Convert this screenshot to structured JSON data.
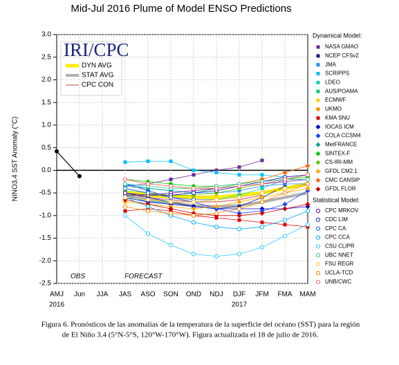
{
  "chart_data": {
    "type": "line",
    "title": "Mid-Jul 2016 Plume of Model ENSO Predictions",
    "y_label": "NINO3.4 SST Anomaly (°C)",
    "logo": "IRI/CPC",
    "annotations": [
      "OBS",
      "FORECAST"
    ],
    "caption": [
      "Figura 6. Pronósticos de las anomalías de la temperatura de la superficie del océano (SST) para la región",
      "de El Niño 3.4 (5°N-5°S, 120°W-170°W). Figura actualizada el 18 de julio de 2016."
    ],
    "categories": [
      "AMJ",
      "Jun",
      "JJA",
      "JAS",
      "ASO",
      "SON",
      "OND",
      "NDJ",
      "DJF",
      "JFM",
      "FMA",
      "MAM"
    ],
    "year_labels": [
      "2016",
      null,
      null,
      null,
      null,
      null,
      null,
      null,
      "2017",
      null,
      null,
      null
    ],
    "ylim": [
      -2.5,
      3.0
    ],
    "yticks": [
      {
        "value": 3.0,
        "label": "3.0"
      },
      2.5,
      {
        "value": 2.0,
        "label": "2.0"
      },
      1.5,
      {
        "value": 1.0,
        "label": "1.0"
      },
      0.5,
      {
        "value": 0.0,
        "label": "0.0"
      },
      -0.5,
      {
        "value": -1.0,
        "label": "-1.0"
      },
      -1.5,
      {
        "value": -2.0,
        "label": "-2.0"
      },
      -2.5
    ],
    "grid": true,
    "observed": {
      "color": "#000000",
      "values": [
        0.42,
        -0.13,
        null,
        null,
        null,
        null,
        null,
        null,
        null,
        null,
        null,
        null
      ]
    },
    "legend_titles": [
      "Dynamical Model:",
      "Statistical Model:"
    ],
    "averages": [
      {
        "name": "DYN AVG",
        "color": "#ffee00",
        "line_width": 5,
        "values": [
          null,
          null,
          null,
          -0.5,
          -0.55,
          -0.58,
          -0.6,
          -0.6,
          -0.55,
          -0.5,
          -0.4,
          -0.3
        ]
      },
      {
        "name": "STAT AVG",
        "color": "#b0b0b0",
        "line_width": 4,
        "values": [
          null,
          null,
          null,
          -0.55,
          -0.65,
          -0.72,
          -0.78,
          -0.8,
          -0.78,
          -0.7,
          -0.6,
          -0.5
        ]
      },
      {
        "name": "CPC CON",
        "color": "#e08080",
        "line_width": 1.5,
        "values": [
          null,
          null,
          null,
          -0.5,
          -0.6,
          -0.65,
          -0.7,
          -0.7,
          -0.65,
          -0.55,
          null,
          null
        ]
      }
    ],
    "series": [
      {
        "name": "NASA GMAO",
        "group": 0,
        "marker": "square",
        "color": "#6a2c9a",
        "values": [
          null,
          null,
          null,
          -0.35,
          -0.3,
          -0.2,
          -0.1,
          0.0,
          0.07,
          0.22,
          null,
          null
        ]
      },
      {
        "name": "NCEP CFSv2",
        "group": 0,
        "marker": "square",
        "color": "#1a1a8c",
        "values": [
          null,
          null,
          null,
          -0.5,
          -0.6,
          -0.7,
          -0.8,
          -0.85,
          -0.8,
          -0.6,
          -0.35,
          null
        ]
      },
      {
        "name": "JMA",
        "group": 0,
        "marker": "square",
        "color": "#1e90ff",
        "values": [
          null,
          null,
          null,
          -0.3,
          -0.4,
          -0.45,
          -0.5,
          -0.5,
          -0.45,
          -0.35,
          -0.3,
          -0.3
        ]
      },
      {
        "name": "SCRIPPS",
        "group": 0,
        "marker": "square",
        "color": "#00bfff",
        "values": [
          null,
          null,
          null,
          0.18,
          0.2,
          0.2,
          0.0,
          -0.05,
          -0.1,
          -0.1,
          -0.15,
          null
        ]
      },
      {
        "name": "LDEO",
        "group": 0,
        "marker": "square",
        "color": "#00d0b0",
        "values": [
          null,
          null,
          null,
          -0.55,
          -0.7,
          -0.7,
          -0.7,
          -0.65,
          -0.55,
          -0.4,
          -0.2,
          -0.1
        ]
      },
      {
        "name": "AUS/POAMA",
        "group": 0,
        "marker": "square",
        "color": "#00cc66",
        "values": [
          null,
          null,
          null,
          -0.4,
          -0.5,
          -0.55,
          -0.5,
          -0.4,
          -0.3,
          -0.2,
          null,
          null
        ]
      },
      {
        "name": "ECMWF",
        "group": 0,
        "marker": "square",
        "color": "#ffcc00",
        "values": [
          null,
          null,
          null,
          -0.5,
          -0.55,
          -0.6,
          -0.6,
          -0.55,
          null,
          null,
          null,
          null
        ]
      },
      {
        "name": "UKMO",
        "group": 0,
        "marker": "square",
        "color": "#ff8800",
        "values": [
          null,
          null,
          null,
          -0.4,
          -0.5,
          -0.55,
          -0.55,
          null,
          null,
          null,
          null,
          null
        ]
      },
      {
        "name": "KMA SNU",
        "group": 0,
        "marker": "square",
        "color": "#dd0000",
        "values": [
          null,
          null,
          null,
          -0.9,
          -0.85,
          -0.9,
          -1.0,
          -1.05,
          -1.1,
          -1.15,
          -1.2,
          -1.25
        ]
      },
      {
        "name": "IOCAS ICM",
        "group": 0,
        "marker": "diamond",
        "color": "#0000cc",
        "values": [
          null,
          null,
          null,
          -0.6,
          -0.7,
          -0.75,
          -0.8,
          -0.85,
          -0.85,
          -0.85,
          -0.85,
          -0.8
        ]
      },
      {
        "name": "COLA CCSM4",
        "group": 0,
        "marker": "diamond",
        "color": "#2040ff",
        "values": [
          null,
          null,
          null,
          -0.3,
          -0.45,
          -0.6,
          -0.7,
          -0.85,
          -0.95,
          -0.9,
          -0.75,
          -0.45
        ]
      },
      {
        "name": "MetFRANCE",
        "group": 0,
        "marker": "diamond",
        "color": "#00aa88",
        "values": [
          null,
          null,
          null,
          -0.35,
          -0.4,
          -0.45,
          -0.5,
          null,
          null,
          null,
          null,
          null
        ]
      },
      {
        "name": "SINTEX-F",
        "group": 0,
        "marker": "diamond",
        "color": "#00cc00",
        "values": [
          null,
          null,
          null,
          -0.2,
          -0.25,
          -0.3,
          -0.35,
          -0.35,
          -0.3,
          -0.25,
          -0.2,
          -0.15
        ]
      },
      {
        "name": "CS-IRI-MM",
        "group": 0,
        "marker": "diamond",
        "color": "#66cc00",
        "values": [
          null,
          null,
          null,
          -0.45,
          -0.5,
          -0.55,
          -0.55,
          -0.5,
          -0.4,
          -0.3,
          null,
          null
        ]
      },
      {
        "name": "GFDL CM2.1",
        "group": 0,
        "marker": "diamond",
        "color": "#ffaa00",
        "values": [
          null,
          null,
          null,
          -0.7,
          -0.75,
          -0.8,
          -0.85,
          -0.8,
          -0.7,
          -0.6,
          -0.5,
          -0.4
        ]
      },
      {
        "name": "CMC CANSIP",
        "group": 0,
        "marker": "diamond",
        "color": "#ff6600",
        "values": [
          null,
          null,
          null,
          -0.2,
          -0.3,
          -0.35,
          -0.4,
          -0.35,
          -0.3,
          -0.2,
          -0.05,
          0.1
        ]
      },
      {
        "name": "GFDL FLOR",
        "group": 0,
        "marker": "diamond",
        "color": "#cc0000",
        "values": [
          null,
          null,
          null,
          -0.65,
          -0.75,
          -0.85,
          -0.95,
          -1.0,
          -1.0,
          -0.95,
          -0.85,
          -0.75
        ]
      },
      {
        "name": "CPC MRKOV",
        "group": 1,
        "marker": "circle",
        "color": "#6a0dad",
        "values": [
          null,
          null,
          null,
          -0.55,
          -0.55,
          -0.5,
          -0.45,
          -0.4,
          -0.35,
          -0.3,
          -0.25,
          -0.2
        ]
      },
      {
        "name": "CDC LIM",
        "group": 1,
        "marker": "circle",
        "color": "#1a1aa0",
        "values": [
          null,
          null,
          null,
          -0.5,
          -0.55,
          -0.55,
          -0.5,
          -0.45,
          -0.35,
          -0.25,
          -0.15,
          -0.1
        ]
      },
      {
        "name": "CPC CA",
        "group": 1,
        "marker": "circle",
        "color": "#1e60ff",
        "values": [
          null,
          null,
          null,
          -0.4,
          -0.5,
          -0.6,
          -0.65,
          -0.65,
          -0.6,
          -0.5,
          -0.4,
          -0.3
        ]
      },
      {
        "name": "CPC CCA",
        "group": 1,
        "marker": "circle",
        "color": "#00aaff",
        "values": [
          null,
          null,
          null,
          -0.6,
          -0.8,
          -1.0,
          -1.15,
          -1.25,
          -1.3,
          -1.25,
          -1.1,
          -0.9
        ]
      },
      {
        "name": "CSU CLIPR",
        "group": 1,
        "marker": "circle",
        "color": "#33ccff",
        "values": [
          null,
          null,
          null,
          -1.0,
          -1.4,
          -1.65,
          -1.85,
          -1.9,
          -1.85,
          -1.7,
          -1.45,
          -1.2
        ]
      },
      {
        "name": "UBC NNET",
        "group": 1,
        "marker": "circle",
        "color": "#33cc99",
        "values": [
          null,
          null,
          null,
          -0.3,
          -0.35,
          -0.4,
          -0.4,
          -0.35,
          -0.3,
          -0.25,
          -0.2,
          -0.2
        ]
      },
      {
        "name": "FSU REGR",
        "group": 1,
        "marker": "circle",
        "color": "#ffcc33",
        "values": [
          null,
          null,
          null,
          -0.6,
          -0.65,
          -0.7,
          -0.7,
          -0.65,
          -0.6,
          -0.5,
          -0.4,
          -0.3
        ]
      },
      {
        "name": "UCLA-TCD",
        "group": 1,
        "marker": "circle",
        "color": "#ff8800",
        "values": [
          null,
          null,
          null,
          -0.8,
          -0.9,
          -0.95,
          -1.0,
          -0.95,
          -0.85,
          -0.7,
          -0.5,
          -0.3
        ]
      },
      {
        "name": "UNB/CWC",
        "group": 1,
        "marker": "circle",
        "color": "#ff6666",
        "values": [
          null,
          null,
          null,
          -0.2,
          -0.3,
          -0.35,
          -0.4,
          -0.4,
          -0.35,
          -0.3,
          -0.2,
          -0.1
        ]
      }
    ]
  }
}
